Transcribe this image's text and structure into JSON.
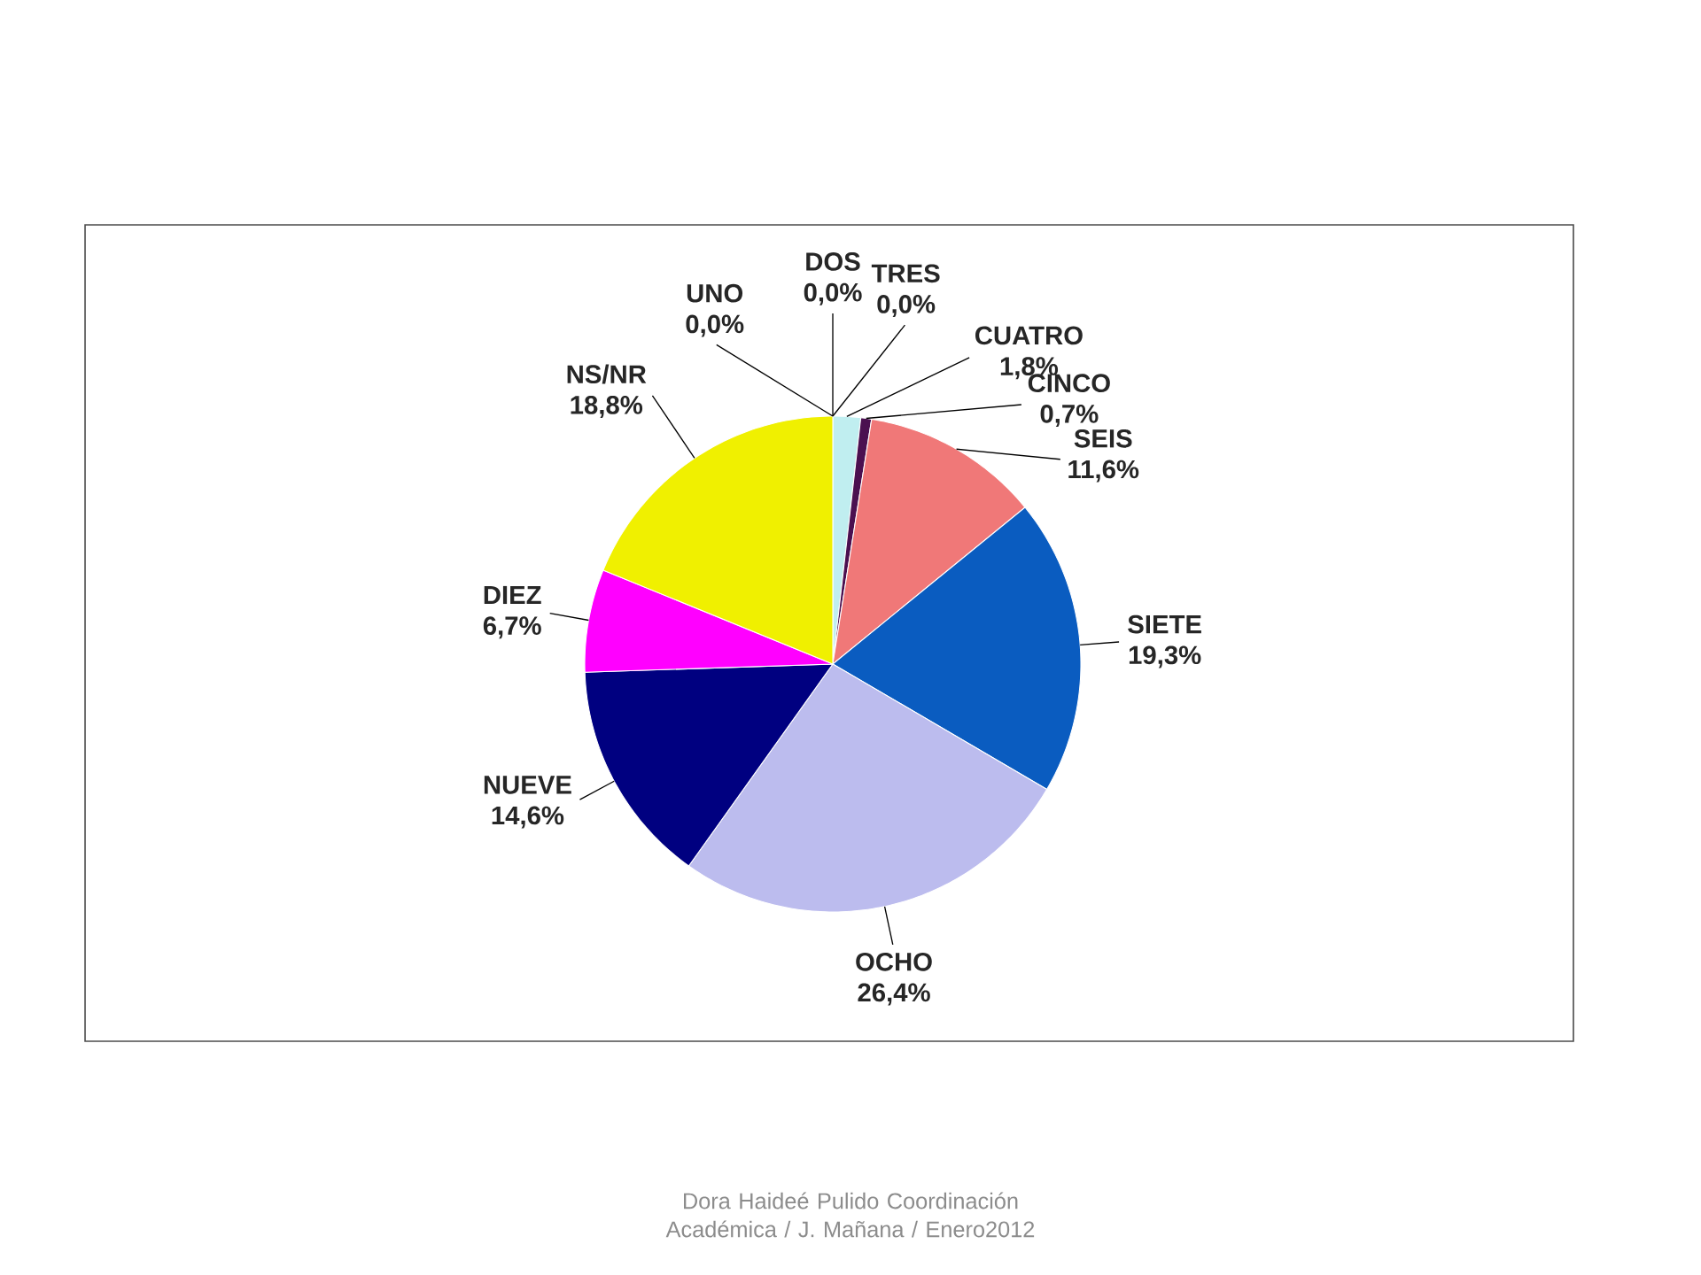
{
  "chart_data": {
    "type": "pie",
    "categories": [
      "UNO",
      "DOS",
      "TRES",
      "CUATRO",
      "CINCO",
      "SEIS",
      "SIETE",
      "OCHO",
      "NUEVE",
      "DIEZ",
      "NS/NR"
    ],
    "values": [
      0.0,
      0.0,
      0.0,
      1.8,
      0.7,
      11.6,
      19.3,
      26.4,
      14.6,
      6.7,
      18.8
    ],
    "value_labels": [
      "0,0%",
      "0,0%",
      "0,0%",
      "1,8%",
      "0,7%",
      "11,6%",
      "19,3%",
      "26,4%",
      "14,6%",
      "6,7%",
      "18,8%"
    ],
    "colors": [
      "#c0eef0",
      "#c0eef0",
      "#c0eef0",
      "#c0eef0",
      "#4b1050",
      "#f07878",
      "#0a5cc0",
      "#bcbcee",
      "#000080",
      "#ff00ff",
      "#f0f000"
    ],
    "annotations": [
      "Dora Haideé Pulido  Coordinación Académica / J. Mañana  / Enero2012"
    ]
  }
}
